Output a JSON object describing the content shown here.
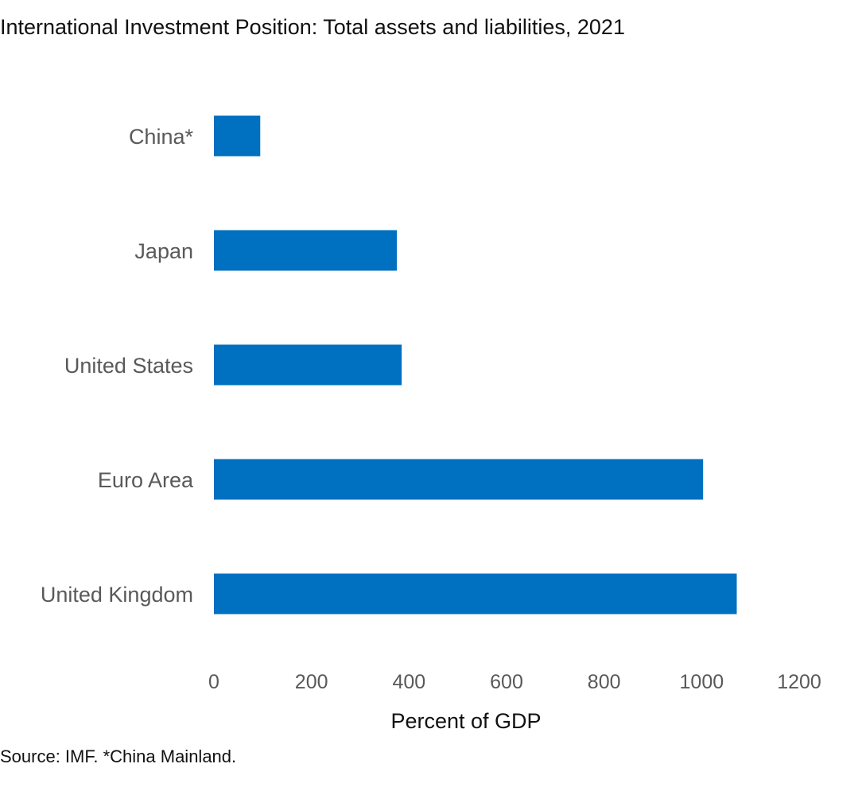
{
  "chart_data": {
    "type": "bar",
    "orientation": "horizontal",
    "title": "International Investment Position: Total assets and liabilities, 2021",
    "categories": [
      "China*",
      "Japan",
      "United States",
      "Euro Area",
      "United Kingdom"
    ],
    "values": [
      95,
      375,
      385,
      1003,
      1072
    ],
    "xlabel": "Percent of GDP",
    "ylabel": "",
    "xlim": [
      0,
      1200
    ],
    "xticks": [
      0,
      200,
      400,
      600,
      800,
      1000,
      1200
    ],
    "xtick_labels": [
      "0",
      "200",
      "400",
      "600",
      "800",
      "1000",
      "1200"
    ],
    "grid": false,
    "legend": "none",
    "bar_color": "#0070c0",
    "label_color": "#595959",
    "note": "Source: IMF. *China Mainland."
  }
}
